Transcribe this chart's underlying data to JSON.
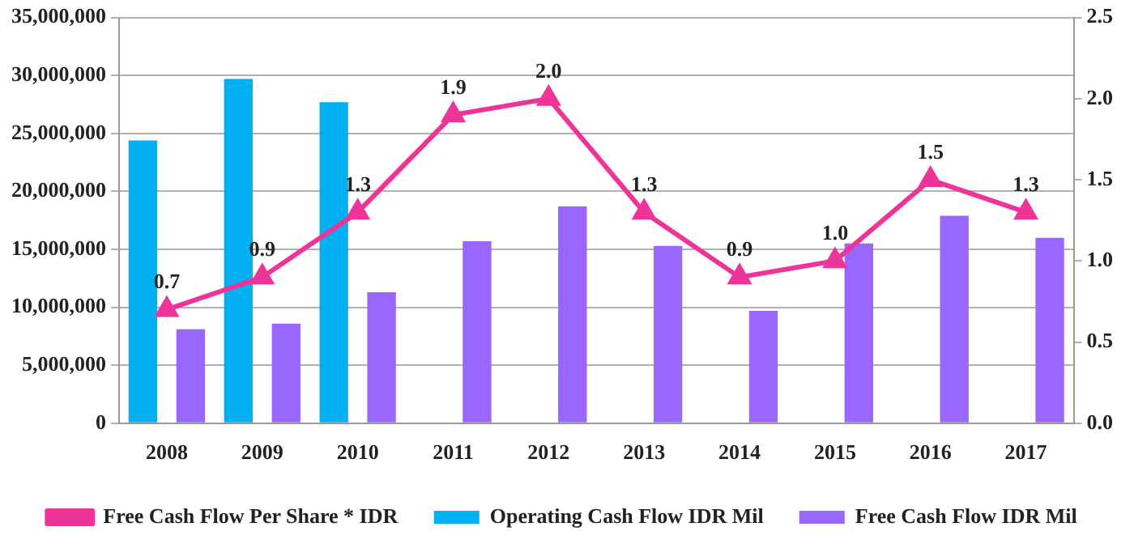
{
  "chart_data": {
    "type": "bar",
    "categories": [
      "2008",
      "2009",
      "2010",
      "2011",
      "2012",
      "2013",
      "2014",
      "2015",
      "2016",
      "2017"
    ],
    "series": [
      {
        "name": "Operating Cash Flow IDR Mil",
        "color": "#00b0f0",
        "values": [
          24400000,
          29700000,
          27700000,
          null,
          null,
          null,
          null,
          null,
          null,
          null
        ]
      },
      {
        "name": "Free Cash Flow IDR Mil",
        "color": "#9966ff",
        "values": [
          8100000,
          8600000,
          11300000,
          15700000,
          18700000,
          15300000,
          9700000,
          15500000,
          17900000,
          16000000
        ]
      },
      {
        "name": "Free Cash Flow Per Share * IDR",
        "type": "line",
        "axis": "y2",
        "color": "#ee3399",
        "marker": "triangle",
        "values": [
          0.7,
          0.9,
          1.3,
          1.9,
          2.0,
          1.3,
          0.9,
          1.0,
          1.5,
          1.3
        ],
        "value_labels": [
          "0.7",
          "0.9",
          "1.3",
          "1.9",
          "2.0",
          "1.3",
          "0.9",
          "1.0",
          "1.5",
          "1.3"
        ]
      }
    ],
    "ylim": [
      0,
      35000000
    ],
    "yticks": [
      {
        "value": 0,
        "label": "0"
      },
      {
        "value": 5000000,
        "label": "5,000,000"
      },
      {
        "value": 10000000,
        "label": "10,000,000"
      },
      {
        "value": 15000000,
        "label": "15,000,000"
      },
      {
        "value": 20000000,
        "label": "20,000,000"
      },
      {
        "value": 25000000,
        "label": "25,000,000"
      },
      {
        "value": 30000000,
        "label": "30,000,000"
      },
      {
        "value": 35000000,
        "label": "35,000,000"
      }
    ],
    "y2lim": [
      0,
      2.5
    ],
    "y2ticks": [
      {
        "value": 0,
        "label": "0.0"
      },
      0.5,
      {
        "value": 1,
        "label": "1.0"
      },
      1.5,
      {
        "value": 2,
        "label": "2.0"
      },
      2.5
    ],
    "grid": "y",
    "legend": "bottom"
  }
}
